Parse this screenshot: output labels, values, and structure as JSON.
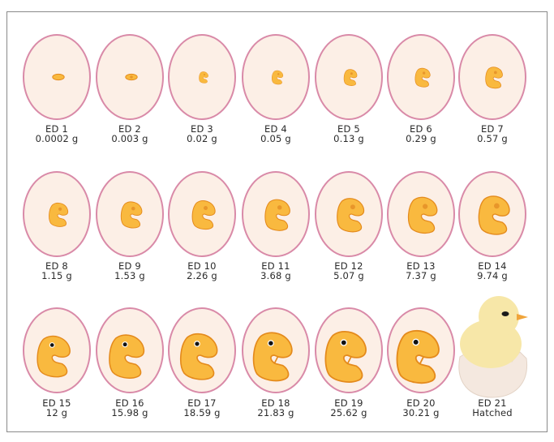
{
  "stages": [
    {
      "day": "ED 1",
      "weight": "0.0002 g"
    },
    {
      "day": "ED 2",
      "weight": "0.003 g"
    },
    {
      "day": "ED 3",
      "weight": "0.02 g"
    },
    {
      "day": "ED 4",
      "weight": "0.05 g"
    },
    {
      "day": "ED 5",
      "weight": "0.13 g"
    },
    {
      "day": "ED 6",
      "weight": "0.29 g"
    },
    {
      "day": "ED 7",
      "weight": "0.57 g"
    },
    {
      "day": "ED 8",
      "weight": "1.15 g"
    },
    {
      "day": "ED 9",
      "weight": "1.53 g"
    },
    {
      "day": "ED 10",
      "weight": "2.26 g"
    },
    {
      "day": "ED 11",
      "weight": "3.68 g"
    },
    {
      "day": "ED 12",
      "weight": "5.07 g"
    },
    {
      "day": "ED 13",
      "weight": "7.37 g"
    },
    {
      "day": "ED 14",
      "weight": "9.74 g"
    },
    {
      "day": "ED 15",
      "weight": "12 g"
    },
    {
      "day": "ED 16",
      "weight": "15.98 g"
    },
    {
      "day": "ED 17",
      "weight": "18.59 g"
    },
    {
      "day": "ED 18",
      "weight": "21.83 g"
    },
    {
      "day": "ED 19",
      "weight": "25.62 g"
    },
    {
      "day": "ED 20",
      "weight": "30.21 g"
    },
    {
      "day": "ED 21",
      "weight": "Hatched"
    }
  ],
  "colors": {
    "egg_outline": "#d98aa8",
    "egg_fill": "#fcefe6",
    "embryo_fill": "#f9b93f",
    "embryo_stroke": "#e48a1c",
    "eye_early": "#e8962a",
    "eye_late": "#111111",
    "chick_fluff": "#f7e7a8",
    "shell": "#f4e8df"
  }
}
